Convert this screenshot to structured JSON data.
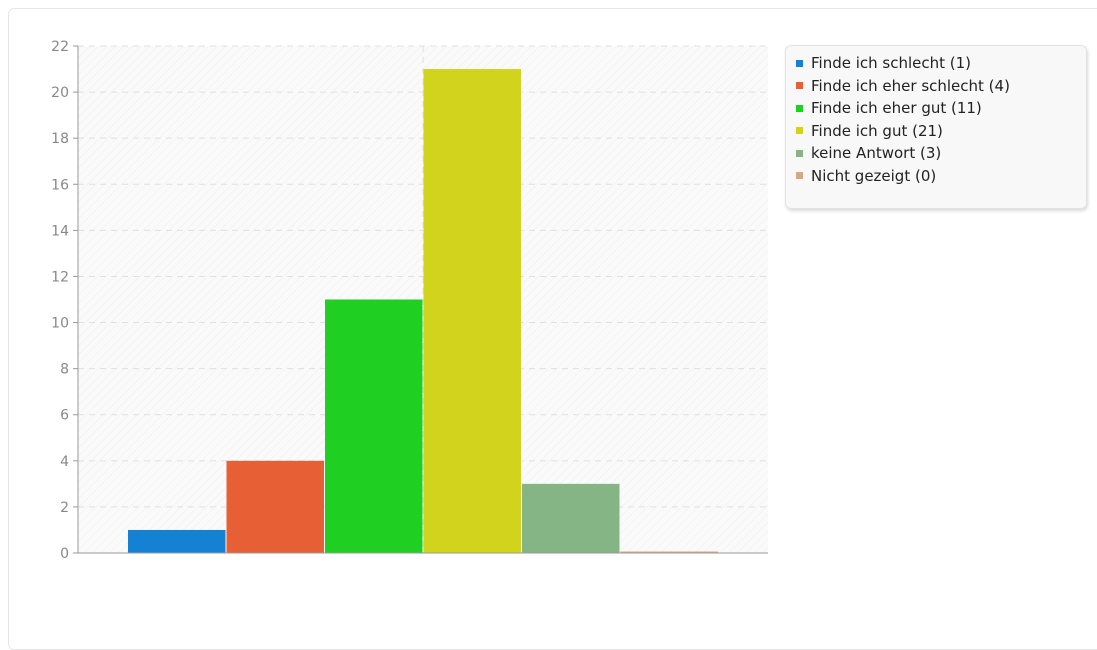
{
  "chart_data": {
    "type": "bar",
    "categories": [
      "Finde ich schlecht (1)",
      "Finde ich eher schlecht (4)",
      "Finde ich eher gut (11)",
      "Finde ich gut (21)",
      "keine Antwort (3)",
      "Nicht gezeigt (0)"
    ],
    "values": [
      1,
      4,
      11,
      21,
      3,
      0
    ],
    "colors": [
      "#1581d3",
      "#e65f35",
      "#1fcf21",
      "#d2d31c",
      "#86b585",
      "#d5a981"
    ],
    "ylim": [
      0,
      22
    ],
    "yticks": [
      0,
      2,
      4,
      6,
      8,
      10,
      12,
      14,
      16,
      18,
      20,
      22
    ],
    "grid": true,
    "legend": "top-right"
  },
  "legend": {
    "items": [
      {
        "label": "Finde ich schlecht (1)",
        "color": "#1581d3"
      },
      {
        "label": "Finde ich eher schlecht (4)",
        "color": "#e65f35"
      },
      {
        "label": "Finde ich eher gut (11)",
        "color": "#1fcf21"
      },
      {
        "label": "Finde ich gut (21)",
        "color": "#d2d31c"
      },
      {
        "label": "keine Antwort (3)",
        "color": "#86b585"
      },
      {
        "label": "Nicht gezeigt (0)",
        "color": "#d5a981"
      }
    ]
  }
}
